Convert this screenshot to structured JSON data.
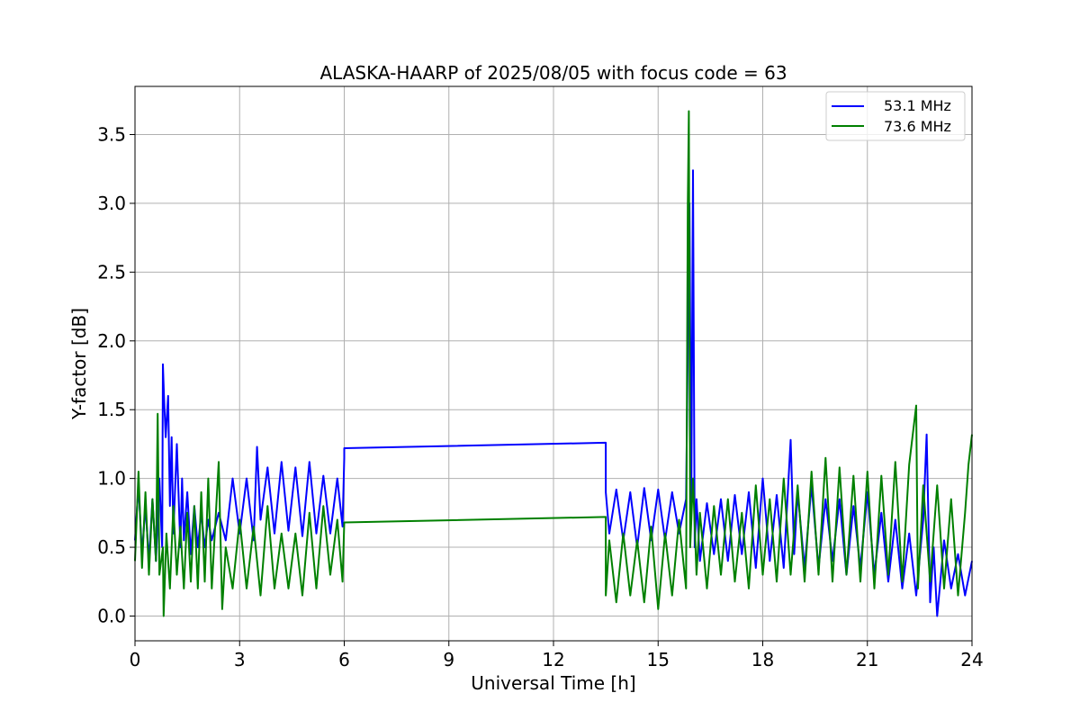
{
  "chart_data": {
    "type": "line",
    "title": "ALASKA-HAARP of 2025/08/05 with focus code = 63",
    "xlabel": "Universal Time [h]",
    "ylabel": "Y-factor [dB]",
    "xlim": [
      0,
      24
    ],
    "ylim": [
      -0.18,
      3.85
    ],
    "xticks": [
      0,
      3,
      6,
      9,
      12,
      15,
      18,
      21,
      24
    ],
    "yticks": [
      0.0,
      0.5,
      1.0,
      1.5,
      2.0,
      2.5,
      3.0,
      3.5
    ],
    "ytick_labels": [
      "0.0",
      "0.5",
      "1.0",
      "1.5",
      "2.0",
      "2.5",
      "3.0",
      "3.5"
    ],
    "grid": true,
    "legend_position": "top-right",
    "series": [
      {
        "name": "53.1 MHz",
        "color": "#0000ff",
        "x": [
          0.0,
          0.1,
          0.2,
          0.3,
          0.4,
          0.5,
          0.6,
          0.7,
          0.78,
          0.8,
          0.83,
          0.88,
          0.95,
          1.0,
          1.05,
          1.1,
          1.2,
          1.3,
          1.35,
          1.4,
          1.5,
          1.6,
          1.7,
          1.8,
          1.9,
          2.0,
          2.1,
          2.2,
          2.4,
          2.6,
          2.8,
          3.0,
          3.2,
          3.4,
          3.5,
          3.6,
          3.8,
          4.0,
          4.2,
          4.4,
          4.6,
          4.8,
          5.0,
          5.2,
          5.4,
          5.6,
          5.8,
          5.95,
          6.0,
          6.0,
          13.5,
          13.5,
          13.6,
          13.8,
          14.0,
          14.2,
          14.4,
          14.6,
          14.8,
          15.0,
          15.2,
          15.4,
          15.6,
          15.8,
          15.9,
          15.95,
          16.0,
          16.05,
          16.1,
          16.2,
          16.4,
          16.6,
          16.8,
          17.0,
          17.2,
          17.4,
          17.6,
          17.8,
          18.0,
          18.2,
          18.4,
          18.6,
          18.8,
          18.9,
          19.0,
          19.2,
          19.4,
          19.6,
          19.8,
          20.0,
          20.2,
          20.4,
          20.6,
          20.8,
          21.0,
          21.2,
          21.4,
          21.6,
          21.8,
          22.0,
          22.2,
          22.4,
          22.6,
          22.7,
          22.8,
          22.9,
          23.0,
          23.2,
          23.4,
          23.6,
          23.8,
          24.0
        ],
        "y": [
          0.55,
          0.95,
          0.45,
          0.8,
          0.4,
          0.85,
          0.4,
          1.0,
          0.5,
          1.83,
          1.6,
          1.3,
          1.6,
          0.8,
          1.3,
          0.6,
          1.25,
          0.5,
          1.0,
          0.55,
          0.9,
          0.45,
          0.8,
          0.5,
          0.75,
          0.5,
          0.7,
          0.55,
          0.75,
          0.55,
          1.0,
          0.6,
          1.0,
          0.55,
          1.23,
          0.7,
          1.08,
          0.6,
          1.12,
          0.62,
          1.08,
          0.58,
          1.12,
          0.6,
          1.02,
          0.6,
          1.0,
          0.65,
          1.15,
          1.22,
          1.26,
          0.9,
          0.6,
          0.92,
          0.55,
          0.9,
          0.5,
          0.93,
          0.55,
          0.92,
          0.55,
          0.9,
          0.6,
          0.85,
          3.0,
          0.8,
          3.24,
          0.5,
          0.85,
          0.4,
          0.82,
          0.45,
          0.85,
          0.4,
          0.88,
          0.45,
          0.9,
          0.35,
          1.0,
          0.4,
          0.88,
          0.35,
          1.28,
          0.45,
          0.9,
          0.35,
          0.95,
          0.35,
          0.85,
          0.4,
          0.85,
          0.3,
          0.8,
          0.35,
          0.9,
          0.3,
          0.75,
          0.25,
          0.7,
          0.2,
          0.6,
          0.15,
          0.7,
          1.32,
          0.1,
          0.5,
          0.0,
          0.55,
          0.2,
          0.45,
          0.15,
          0.4
        ]
      },
      {
        "name": "73.6 MHz",
        "color": "#008000",
        "x": [
          0.0,
          0.1,
          0.2,
          0.3,
          0.4,
          0.5,
          0.6,
          0.65,
          0.7,
          0.8,
          0.82,
          0.9,
          1.0,
          1.1,
          1.2,
          1.3,
          1.4,
          1.5,
          1.6,
          1.7,
          1.8,
          1.9,
          2.0,
          2.1,
          2.2,
          2.4,
          2.5,
          2.6,
          2.8,
          3.0,
          3.2,
          3.4,
          3.6,
          3.8,
          4.0,
          4.2,
          4.4,
          4.6,
          4.8,
          5.0,
          5.2,
          5.4,
          5.6,
          5.8,
          5.95,
          6.0,
          6.0,
          13.5,
          13.5,
          13.6,
          13.8,
          14.0,
          14.2,
          14.4,
          14.6,
          14.8,
          15.0,
          15.2,
          15.4,
          15.6,
          15.8,
          15.85,
          15.88,
          15.92,
          16.0,
          16.1,
          16.2,
          16.4,
          16.6,
          16.8,
          17.0,
          17.2,
          17.4,
          17.6,
          17.8,
          18.0,
          18.2,
          18.4,
          18.6,
          18.8,
          19.0,
          19.2,
          19.4,
          19.6,
          19.8,
          20.0,
          20.2,
          20.4,
          20.6,
          20.8,
          21.0,
          21.2,
          21.4,
          21.6,
          21.8,
          22.0,
          22.2,
          22.4,
          22.45,
          22.6,
          22.8,
          23.0,
          23.2,
          23.4,
          23.6,
          23.8,
          23.9,
          24.0
        ],
        "y": [
          0.4,
          1.05,
          0.35,
          0.9,
          0.3,
          0.85,
          0.4,
          1.47,
          0.3,
          0.5,
          0.0,
          0.6,
          0.2,
          0.8,
          0.3,
          0.65,
          0.2,
          0.75,
          0.25,
          0.8,
          0.2,
          0.9,
          0.25,
          1.0,
          0.2,
          1.12,
          0.05,
          0.5,
          0.2,
          0.7,
          0.2,
          0.65,
          0.15,
          0.8,
          0.2,
          0.6,
          0.2,
          0.6,
          0.15,
          0.75,
          0.2,
          0.8,
          0.3,
          0.7,
          0.25,
          0.68,
          0.68,
          0.72,
          0.15,
          0.55,
          0.1,
          0.6,
          0.15,
          0.55,
          0.1,
          0.65,
          0.05,
          0.6,
          0.15,
          0.7,
          0.2,
          2.98,
          3.67,
          0.5,
          1.0,
          0.3,
          0.75,
          0.2,
          0.8,
          0.3,
          0.85,
          0.25,
          0.75,
          0.2,
          0.95,
          0.3,
          0.85,
          0.25,
          1.0,
          0.3,
          0.95,
          0.25,
          1.05,
          0.3,
          1.15,
          0.25,
          1.08,
          0.3,
          1.02,
          0.25,
          1.05,
          0.2,
          1.02,
          0.3,
          1.12,
          0.25,
          1.1,
          1.53,
          0.2,
          0.95,
          0.25,
          0.95,
          0.2,
          0.85,
          0.15,
          0.75,
          1.1,
          1.32
        ]
      }
    ]
  }
}
